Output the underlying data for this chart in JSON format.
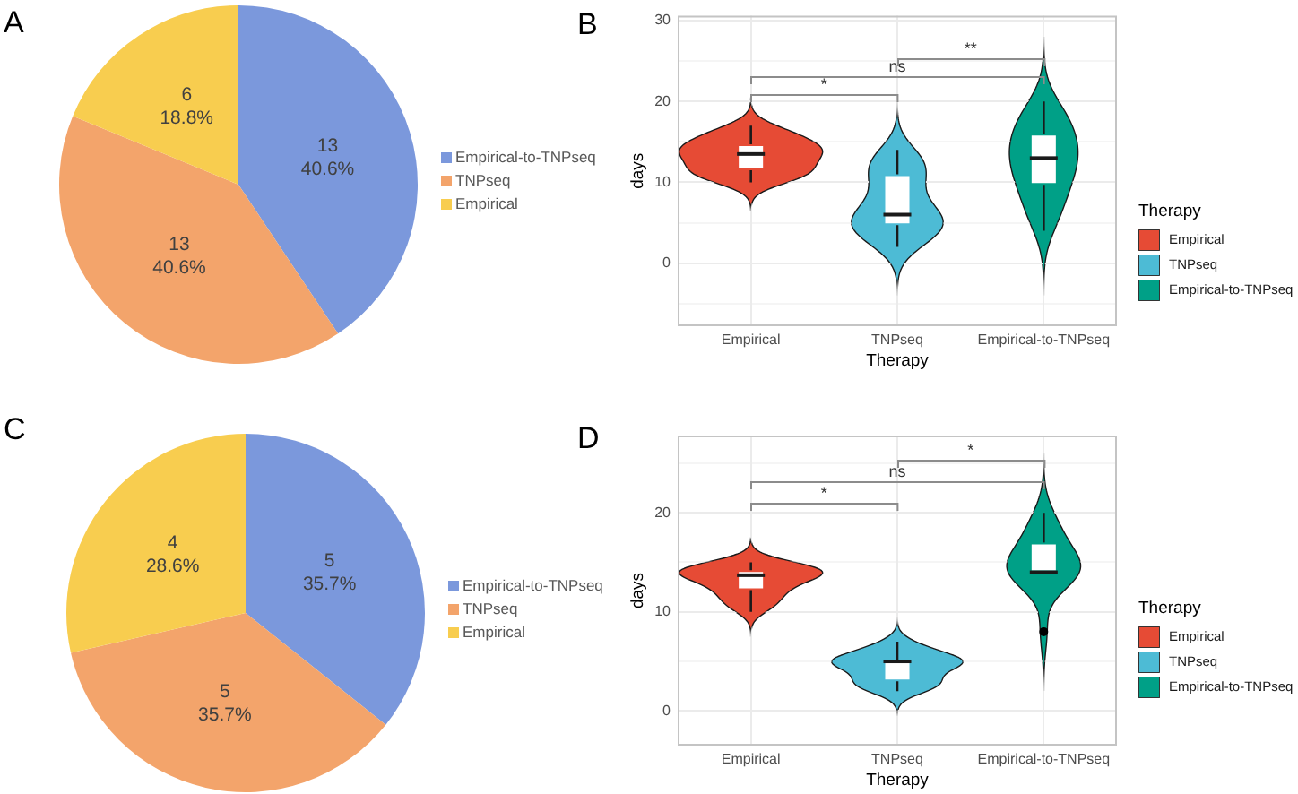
{
  "chart_data": [
    {
      "type": "pie",
      "title": "A",
      "categories": [
        "Empirical-to-TNPseq",
        "TNPseq",
        "Empirical"
      ],
      "values": [
        13,
        13,
        6
      ],
      "colors": [
        "#7b98dc",
        "#f3a46b",
        "#f8cd4f"
      ],
      "value_labels": [
        "13\n40.6%",
        "13\n40.6%",
        "6\n18.8%"
      ],
      "legend": "right"
    },
    {
      "type": "box",
      "title": "B",
      "xlabel": "Therapy",
      "ylabel": "days",
      "legend_title": "Therapy",
      "categories": [
        "Empirical",
        "TNPseq",
        "Empirical-to-TNPseq"
      ],
      "series": [
        {
          "name": "Empirical",
          "color": "#e64b35",
          "boxes": [
            {
              "low": 10,
              "q1": 11.5,
              "median": 13.5,
              "q3": 14.7,
              "high": 17
            },
            null,
            null
          ]
        },
        {
          "name": "TNPseq",
          "color": "#4dbbd5",
          "boxes": [
            null,
            {
              "low": 2,
              "q1": 4.7,
              "median": 6,
              "q3": 11,
              "high": 14
            },
            null
          ]
        },
        {
          "name": "Empirical-to-TNPseq",
          "color": "#00a087",
          "boxes": [
            null,
            null,
            {
              "low": 4,
              "q1": 9.7,
              "median": 13,
              "q3": 16,
              "high": 20
            }
          ]
        }
      ],
      "ylim": [
        -7.8,
        30.6
      ],
      "yticks": [
        {
          "value": -5,
          "label": null
        },
        0,
        {
          "value": 5,
          "label": null
        },
        10,
        {
          "value": 15,
          "label": null
        },
        20,
        {
          "value": 25,
          "label": null
        },
        30
      ],
      "grid": true,
      "legend": "right",
      "annotations": [
        "*",
        "ns",
        "**"
      ]
    },
    {
      "type": "pie",
      "title": "C",
      "categories": [
        "Empirical-to-TNPseq",
        "TNPseq",
        "Empirical"
      ],
      "values": [
        5,
        5,
        4
      ],
      "colors": [
        "#7b98dc",
        "#f3a46b",
        "#f8cd4f"
      ],
      "value_labels": [
        "5\n35.7%",
        "5\n35.7%",
        "4\n28.6%"
      ],
      "legend": "right"
    },
    {
      "type": "box",
      "title": "D",
      "xlabel": "Therapy",
      "ylabel": "days",
      "legend_title": "Therapy",
      "categories": [
        "Empirical",
        "TNPseq",
        "Empirical-to-TNPseq"
      ],
      "series": [
        {
          "name": "Empirical",
          "color": "#e64b35",
          "boxes": [
            {
              "low": 10,
              "q1": 12.2,
              "median": 13.7,
              "q3": 14.2,
              "high": 15
            },
            null,
            null
          ]
        },
        {
          "name": "TNPseq",
          "color": "#4dbbd5",
          "boxes": [
            null,
            {
              "low": 2,
              "q1": 3,
              "median": 5,
              "q3": 5,
              "high": 7
            },
            null
          ]
        },
        {
          "name": "Empirical-to-TNPseq",
          "color": "#00a087",
          "boxes": [
            null,
            null,
            {
              "low": 14,
              "q1": 14,
              "median": 14,
              "q3": 17,
              "high": 20,
              "outliers": [
                8
              ]
            }
          ]
        }
      ],
      "ylim": [
        -3.5,
        27.8
      ],
      "yticks": [
        0,
        {
          "value": 5,
          "label": null
        },
        10,
        {
          "value": 15,
          "label": null
        },
        20,
        {
          "value": 25,
          "label": null
        }
      ],
      "grid": true,
      "legend": "right",
      "annotations": [
        "*",
        "ns",
        "*"
      ]
    }
  ]
}
